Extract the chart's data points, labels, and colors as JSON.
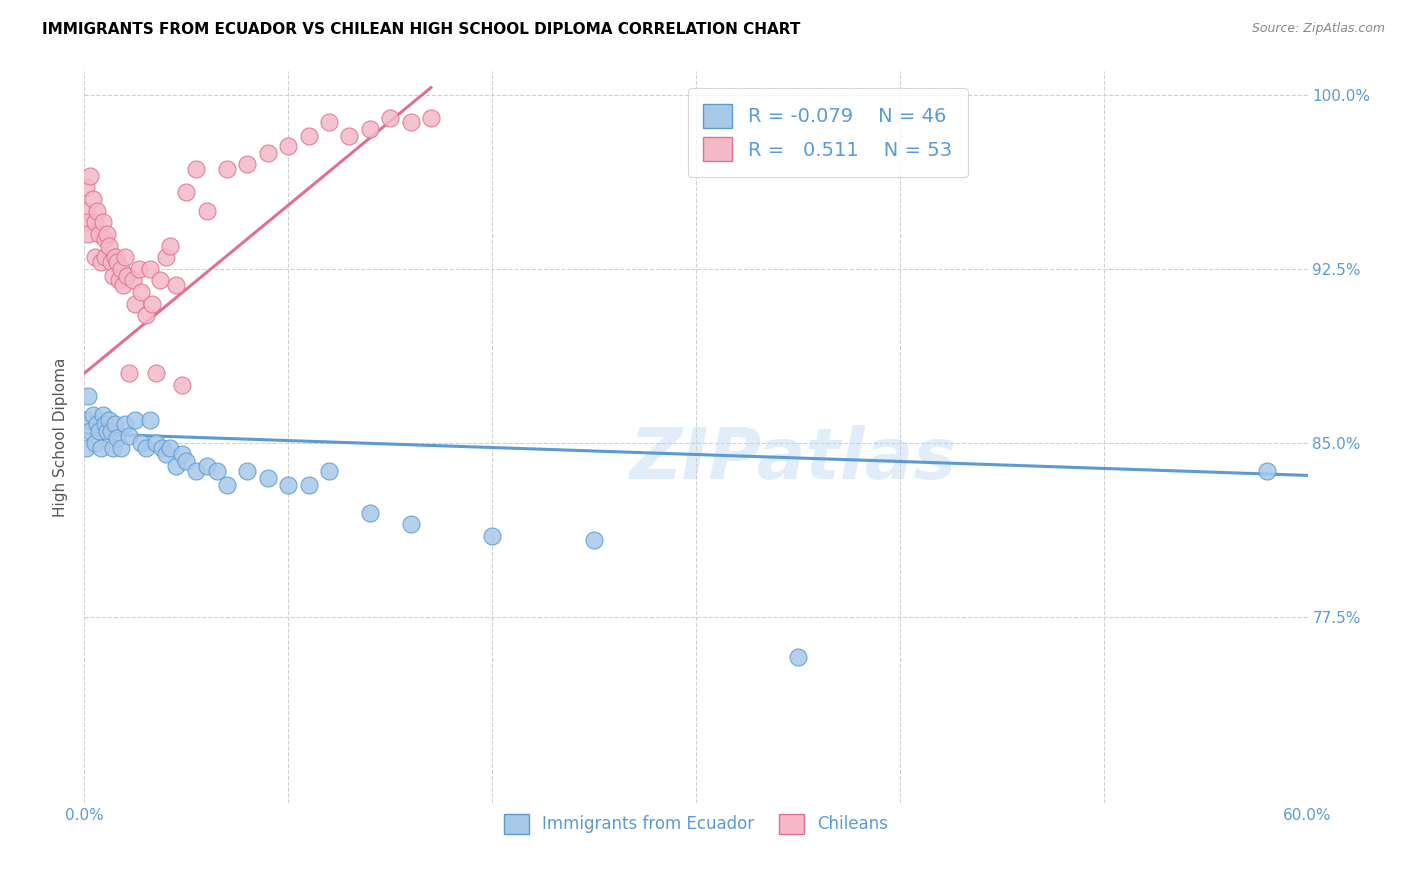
{
  "title": "IMMIGRANTS FROM ECUADOR VS CHILEAN HIGH SCHOOL DIPLOMA CORRELATION CHART",
  "source": "Source: ZipAtlas.com",
  "ylabel": "High School Diploma",
  "xlim": [
    0.0,
    0.6
  ],
  "ylim": [
    0.695,
    1.01
  ],
  "yticks": [
    0.775,
    0.85,
    0.925,
    1.0
  ],
  "ytick_labels": [
    "77.5%",
    "85.0%",
    "92.5%",
    "100.0%"
  ],
  "xticks": [
    0.0,
    0.1,
    0.2,
    0.3,
    0.4,
    0.5,
    0.6
  ],
  "xtick_labels": [
    "0.0%",
    "",
    "",
    "",
    "",
    "",
    "60.0%"
  ],
  "ecuador_color": "#a8c8e8",
  "ecuador_edge": "#5b9bd5",
  "chilean_color": "#f4b8c8",
  "chilean_edge": "#e07090",
  "ecuador_R": -0.079,
  "ecuador_N": 46,
  "chilean_R": 0.511,
  "chilean_N": 53,
  "legend_label_ecuador": "Immigrants from Ecuador",
  "legend_label_chilean": "Chileans",
  "watermark_text": "ZIPatlas",
  "ecuador_scatter_x": [
    0.001,
    0.001,
    0.002,
    0.003,
    0.004,
    0.005,
    0.006,
    0.007,
    0.008,
    0.009,
    0.01,
    0.011,
    0.012,
    0.013,
    0.014,
    0.015,
    0.016,
    0.018,
    0.02,
    0.022,
    0.025,
    0.028,
    0.03,
    0.032,
    0.035,
    0.038,
    0.04,
    0.042,
    0.045,
    0.048,
    0.05,
    0.055,
    0.06,
    0.065,
    0.07,
    0.08,
    0.09,
    0.1,
    0.11,
    0.12,
    0.14,
    0.16,
    0.2,
    0.25,
    0.35,
    0.58
  ],
  "ecuador_scatter_y": [
    0.86,
    0.848,
    0.87,
    0.855,
    0.862,
    0.85,
    0.858,
    0.855,
    0.848,
    0.862,
    0.858,
    0.855,
    0.86,
    0.855,
    0.848,
    0.858,
    0.852,
    0.848,
    0.858,
    0.853,
    0.86,
    0.85,
    0.848,
    0.86,
    0.85,
    0.848,
    0.845,
    0.848,
    0.84,
    0.845,
    0.842,
    0.838,
    0.84,
    0.838,
    0.832,
    0.838,
    0.835,
    0.832,
    0.832,
    0.838,
    0.82,
    0.815,
    0.81,
    0.808,
    0.758,
    0.838
  ],
  "chilean_scatter_x": [
    0.001,
    0.001,
    0.001,
    0.002,
    0.003,
    0.004,
    0.005,
    0.005,
    0.006,
    0.007,
    0.008,
    0.009,
    0.01,
    0.01,
    0.011,
    0.012,
    0.013,
    0.014,
    0.015,
    0.016,
    0.017,
    0.018,
    0.019,
    0.02,
    0.021,
    0.022,
    0.024,
    0.025,
    0.027,
    0.028,
    0.03,
    0.032,
    0.033,
    0.035,
    0.037,
    0.04,
    0.042,
    0.045,
    0.048,
    0.05,
    0.055,
    0.06,
    0.07,
    0.08,
    0.09,
    0.1,
    0.11,
    0.12,
    0.13,
    0.14,
    0.15,
    0.16,
    0.17
  ],
  "chilean_scatter_y": [
    0.96,
    0.95,
    0.945,
    0.94,
    0.965,
    0.955,
    0.945,
    0.93,
    0.95,
    0.94,
    0.928,
    0.945,
    0.938,
    0.93,
    0.94,
    0.935,
    0.928,
    0.922,
    0.93,
    0.928,
    0.92,
    0.925,
    0.918,
    0.93,
    0.922,
    0.88,
    0.92,
    0.91,
    0.925,
    0.915,
    0.905,
    0.925,
    0.91,
    0.88,
    0.92,
    0.93,
    0.935,
    0.918,
    0.875,
    0.958,
    0.968,
    0.95,
    0.968,
    0.97,
    0.975,
    0.978,
    0.982,
    0.988,
    0.982,
    0.985,
    0.99,
    0.988,
    0.99
  ],
  "ecuador_line_x": [
    0.0,
    0.6
  ],
  "ecuador_line_y": [
    0.854,
    0.836
  ],
  "chilean_line_x": [
    0.0,
    0.17
  ],
  "chilean_line_y": [
    0.88,
    1.003
  ],
  "background_color": "#ffffff",
  "grid_color": "#d0d0d0",
  "title_color": "#000000",
  "tick_color": "#5b9bd5",
  "right_tick_color": "#5b9bd5"
}
